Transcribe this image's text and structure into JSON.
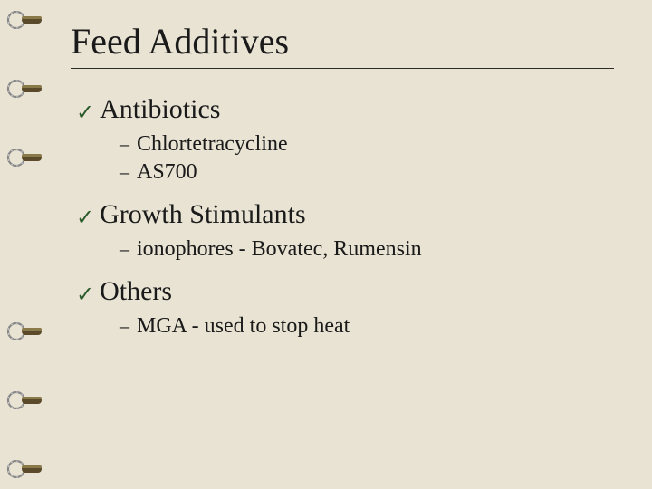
{
  "slide": {
    "title": "Feed Additives",
    "background_color": "#e8e3d3",
    "text_color": "#1a1a1a",
    "title_fontsize": 40,
    "section_fontsize": 30,
    "subitem_fontsize": 24,
    "check_color": "#2a5a2a",
    "ring_positions": [
      22,
      98,
      174,
      366,
      442,
      518
    ],
    "sections": [
      {
        "title": "Antibiotics",
        "items": [
          "Chlortetracycline",
          "AS700"
        ]
      },
      {
        "title": "Growth Stimulants",
        "items": [
          "ionophores - Bovatec, Rumensin"
        ]
      },
      {
        "title": "Others",
        "items": [
          "MGA - used to stop heat"
        ]
      }
    ]
  }
}
